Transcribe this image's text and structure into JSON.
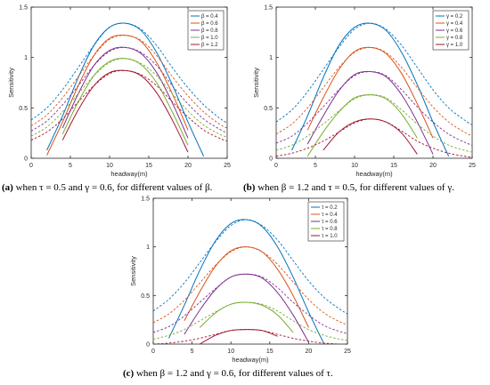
{
  "chart_data": [
    {
      "type": "line",
      "panel": "a",
      "xlabel": "headway(m)",
      "ylabel": "Sensitivity",
      "xlim": [
        0,
        25
      ],
      "ylim": [
        0,
        1.5
      ],
      "xticks": [
        "0",
        "5",
        "10",
        "15",
        "20",
        "25"
      ],
      "yticks": [
        "0",
        "0.5",
        "1",
        "1.5"
      ],
      "legend_position": "top-right",
      "grid": false,
      "x": [
        0,
        2,
        4,
        6,
        8,
        10,
        12,
        14,
        16,
        18,
        20,
        22,
        24,
        25
      ],
      "series": [
        {
          "name": "β = 0.4",
          "color": "#0072BD",
          "solid": [
            null,
            0.08,
            0.42,
            0.8,
            1.12,
            1.3,
            1.34,
            1.27,
            1.05,
            0.73,
            0.36,
            0.02,
            null,
            null
          ],
          "dashed": [
            0.38,
            0.5,
            0.68,
            0.9,
            1.12,
            1.3,
            1.34,
            1.28,
            1.12,
            0.9,
            0.7,
            0.53,
            0.4,
            0.35
          ]
        },
        {
          "name": "β = 0.6",
          "color": "#D95319",
          "solid": [
            null,
            0.03,
            0.36,
            0.72,
            1.02,
            1.19,
            1.22,
            1.16,
            0.95,
            0.64,
            0.28,
            null,
            null,
            null
          ],
          "dashed": [
            0.32,
            0.43,
            0.6,
            0.81,
            1.02,
            1.18,
            1.22,
            1.17,
            1.02,
            0.81,
            0.62,
            0.46,
            0.34,
            0.3
          ]
        },
        {
          "name": "β = 0.8",
          "color": "#7E2F8E",
          "solid": [
            null,
            null,
            0.3,
            0.64,
            0.92,
            1.07,
            1.1,
            1.04,
            0.85,
            0.55,
            0.2,
            null,
            null,
            null
          ],
          "dashed": [
            0.27,
            0.37,
            0.53,
            0.72,
            0.92,
            1.06,
            1.1,
            1.05,
            0.92,
            0.72,
            0.54,
            0.39,
            0.29,
            0.25
          ]
        },
        {
          "name": "β = 1.0",
          "color": "#77AC30",
          "solid": [
            null,
            null,
            0.24,
            0.56,
            0.82,
            0.96,
            0.99,
            0.93,
            0.75,
            0.46,
            0.13,
            null,
            null,
            null
          ],
          "dashed": [
            0.22,
            0.31,
            0.46,
            0.64,
            0.82,
            0.95,
            0.99,
            0.94,
            0.82,
            0.64,
            0.47,
            0.33,
            0.24,
            0.21
          ]
        },
        {
          "name": "β = 1.2",
          "color": "#A2142F",
          "solid": [
            null,
            null,
            0.18,
            0.48,
            0.72,
            0.85,
            0.87,
            0.82,
            0.65,
            0.38,
            0.06,
            null,
            null,
            null
          ],
          "dashed": [
            0.18,
            0.26,
            0.39,
            0.56,
            0.72,
            0.84,
            0.87,
            0.83,
            0.72,
            0.56,
            0.41,
            0.28,
            0.2,
            0.17
          ]
        }
      ]
    },
    {
      "type": "line",
      "panel": "b",
      "xlabel": "headway(m)",
      "ylabel": "Sensitivity",
      "xlim": [
        0,
        25
      ],
      "ylim": [
        0,
        1.5
      ],
      "xticks": [
        "0",
        "5",
        "10",
        "15",
        "20",
        "25"
      ],
      "yticks": [
        "0",
        "0.5",
        "1",
        "1.5"
      ],
      "legend_position": "top-right",
      "grid": false,
      "x": [
        0,
        2,
        4,
        6,
        8,
        10,
        12,
        14,
        16,
        18,
        20,
        22,
        24,
        25
      ],
      "series": [
        {
          "name": "γ = 0.2",
          "color": "#0072BD",
          "solid": [
            null,
            0.08,
            0.42,
            0.8,
            1.12,
            1.3,
            1.34,
            1.27,
            1.05,
            0.73,
            0.36,
            0.02,
            null,
            null
          ],
          "dashed": [
            0.36,
            0.48,
            0.66,
            0.88,
            1.1,
            1.28,
            1.34,
            1.28,
            1.12,
            0.9,
            0.68,
            0.5,
            0.38,
            0.33
          ]
        },
        {
          "name": "γ = 0.4",
          "color": "#D95319",
          "solid": [
            null,
            null,
            0.28,
            0.6,
            0.88,
            1.06,
            1.1,
            1.04,
            0.84,
            0.54,
            0.2,
            null,
            null,
            null
          ],
          "dashed": [
            0.24,
            0.34,
            0.5,
            0.7,
            0.9,
            1.05,
            1.1,
            1.05,
            0.9,
            0.7,
            0.51,
            0.36,
            0.26,
            0.22
          ]
        },
        {
          "name": "γ = 0.6",
          "color": "#7E2F8E",
          "solid": [
            null,
            null,
            0.14,
            0.42,
            0.67,
            0.83,
            0.86,
            0.81,
            0.63,
            0.36,
            0.04,
            null,
            null,
            null
          ],
          "dashed": [
            0.15,
            0.22,
            0.35,
            0.51,
            0.68,
            0.82,
            0.86,
            0.82,
            0.68,
            0.51,
            0.36,
            0.24,
            0.16,
            0.13
          ]
        },
        {
          "name": "γ = 0.8",
          "color": "#77AC30",
          "solid": [
            null,
            null,
            0.02,
            0.26,
            0.46,
            0.6,
            0.63,
            0.59,
            0.44,
            0.2,
            null,
            null,
            null,
            null
          ],
          "dashed": [
            0.08,
            0.13,
            0.22,
            0.34,
            0.47,
            0.59,
            0.63,
            0.6,
            0.48,
            0.34,
            0.22,
            0.13,
            0.08,
            0.06
          ]
        },
        {
          "name": "γ = 1.0",
          "color": "#A2142F",
          "solid": [
            null,
            null,
            null,
            0.08,
            0.26,
            0.36,
            0.39,
            0.36,
            0.25,
            0.04,
            null,
            null,
            null,
            null
          ],
          "dashed": [
            0.02,
            0.05,
            0.1,
            0.17,
            0.26,
            0.35,
            0.39,
            0.36,
            0.27,
            0.17,
            0.1,
            0.05,
            0.02,
            0.01
          ]
        }
      ]
    },
    {
      "type": "line",
      "panel": "c",
      "xlabel": "headway(m)",
      "ylabel": "Sensitivity",
      "xlim": [
        0,
        25
      ],
      "ylim": [
        0,
        1.5
      ],
      "xticks": [
        "0",
        "5",
        "10",
        "15",
        "20",
        "25"
      ],
      "yticks": [
        "0",
        "0.5",
        "1",
        "1.5"
      ],
      "legend_position": "top-right",
      "grid": false,
      "x": [
        0,
        2,
        4,
        6,
        8,
        10,
        12,
        14,
        16,
        18,
        20,
        22,
        24,
        25
      ],
      "series": [
        {
          "name": "τ = 0.2",
          "color": "#0072BD",
          "solid": [
            null,
            0.06,
            0.4,
            0.76,
            1.06,
            1.24,
            1.28,
            1.21,
            1.0,
            0.69,
            0.33,
            0.0,
            null,
            null
          ],
          "dashed": [
            0.34,
            0.46,
            0.63,
            0.84,
            1.05,
            1.22,
            1.28,
            1.22,
            1.07,
            0.86,
            0.65,
            0.48,
            0.36,
            0.31
          ]
        },
        {
          "name": "τ = 0.4",
          "color": "#D95319",
          "solid": [
            null,
            null,
            0.24,
            0.54,
            0.8,
            0.96,
            1.0,
            0.95,
            0.77,
            0.5,
            0.17,
            null,
            null,
            null
          ],
          "dashed": [
            0.22,
            0.31,
            0.45,
            0.63,
            0.81,
            0.95,
            1.0,
            0.95,
            0.82,
            0.64,
            0.46,
            0.32,
            0.23,
            0.2
          ]
        },
        {
          "name": "τ = 0.6",
          "color": "#7E2F8E",
          "solid": [
            null,
            null,
            0.1,
            0.35,
            0.56,
            0.69,
            0.72,
            0.68,
            0.53,
            0.3,
            0.02,
            null,
            null,
            null
          ],
          "dashed": [
            0.12,
            0.18,
            0.29,
            0.43,
            0.57,
            0.69,
            0.72,
            0.69,
            0.58,
            0.43,
            0.3,
            0.19,
            0.13,
            0.11
          ]
        },
        {
          "name": "τ = 0.8",
          "color": "#77AC30",
          "solid": [
            null,
            null,
            null,
            0.17,
            0.32,
            0.41,
            0.43,
            0.4,
            0.3,
            0.12,
            null,
            null,
            null,
            null
          ],
          "dashed": [
            0.05,
            0.09,
            0.15,
            0.24,
            0.33,
            0.41,
            0.43,
            0.41,
            0.34,
            0.24,
            0.15,
            0.09,
            0.05,
            0.04
          ]
        },
        {
          "name": "τ = 1.0",
          "color": "#A2142F",
          "solid": [
            null,
            null,
            null,
            0.0,
            0.09,
            0.14,
            0.15,
            0.14,
            0.08,
            null,
            null,
            null,
            null,
            null
          ],
          "dashed": [
            0.0,
            0.01,
            0.03,
            0.06,
            0.1,
            0.14,
            0.15,
            0.14,
            0.1,
            0.06,
            0.03,
            0.01,
            0.0,
            0.0
          ]
        }
      ]
    }
  ],
  "captions": {
    "a": {
      "label": "(a)",
      "text": " when  τ = 0.5  and  γ = 0.6, for different values of  β."
    },
    "b": {
      "label": "(b)",
      "text": " when  β = 1.2  and  τ = 0.5, for different values of  γ."
    },
    "c": {
      "label": "(c)",
      "text": " when  β = 1.2  and  γ = 0.6, for different values of  τ."
    }
  }
}
